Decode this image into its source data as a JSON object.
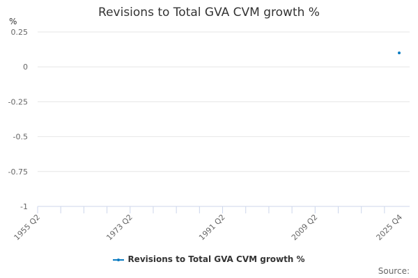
{
  "chart_data": {
    "type": "line",
    "title": "Revisions to Total GVA CVM growth %",
    "ylabel": "%",
    "xlabel": "",
    "ylim": [
      -1,
      0.25
    ],
    "yticks": [
      "0.25",
      "0",
      "-0.25",
      "-0.5",
      "-0.75",
      "-1"
    ],
    "ytick_values": [
      0.25,
      0,
      -0.25,
      -0.5,
      -0.75,
      -1
    ],
    "xticks": [
      "1955 Q2",
      "1973 Q2",
      "1991 Q2",
      "2009 Q2",
      "2025 Q4"
    ],
    "xrange": [
      1955.25,
      2025.75
    ],
    "series": [
      {
        "name": "Revisions to Total GVA CVM growth %",
        "color": "#0a7bc1",
        "points": [
          {
            "x": "2025 Q4",
            "t": 2025.75,
            "y": 0.1
          }
        ]
      }
    ],
    "grid": true,
    "legend": "bottom-center"
  },
  "source": "Source:"
}
